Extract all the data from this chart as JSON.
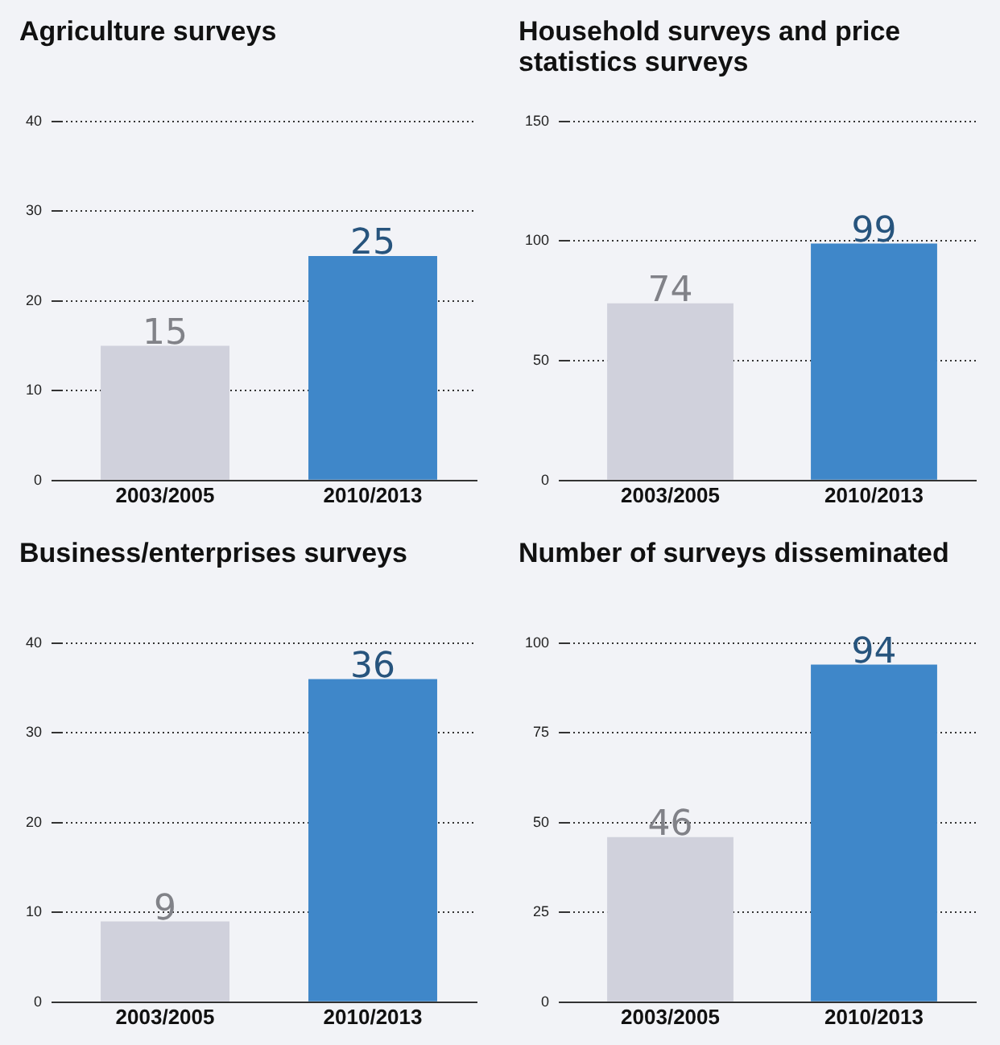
{
  "chart_data": [
    {
      "type": "bar",
      "title": "Agriculture surveys",
      "categories": [
        "2003/2005",
        "2010/2013"
      ],
      "values": [
        15,
        25
      ],
      "colors": [
        "#d0d1dc",
        "#3f87c9"
      ],
      "ylim": [
        0,
        40
      ],
      "yticks": [
        0,
        10,
        20,
        30,
        40
      ],
      "grid": "y",
      "data_labels": true
    },
    {
      "type": "bar",
      "title": "Household surveys and price statistics surveys",
      "categories": [
        "2003/2005",
        "2010/2013"
      ],
      "values": [
        74,
        99
      ],
      "colors": [
        "#d0d1dc",
        "#3f87c9"
      ],
      "ylim": [
        0,
        150
      ],
      "yticks": [
        0,
        50,
        100,
        150
      ],
      "grid": "y",
      "data_labels": true
    },
    {
      "type": "bar",
      "title": "Business/enterprises surveys",
      "categories": [
        "2003/2005",
        "2010/2013"
      ],
      "values": [
        9,
        36
      ],
      "colors": [
        "#d0d1dc",
        "#3f87c9"
      ],
      "ylim": [
        0,
        40
      ],
      "yticks": [
        0,
        10,
        20,
        30,
        40
      ],
      "grid": "y",
      "data_labels": true
    },
    {
      "type": "bar",
      "title": "Number of surveys disseminated",
      "categories": [
        "2003/2005",
        "2010/2013"
      ],
      "values": [
        46,
        94
      ],
      "colors": [
        "#d0d1dc",
        "#3f87c9"
      ],
      "ylim": [
        0,
        100
      ],
      "yticks": [
        0,
        25,
        50,
        75,
        100
      ],
      "grid": "y",
      "data_labels": true
    }
  ]
}
